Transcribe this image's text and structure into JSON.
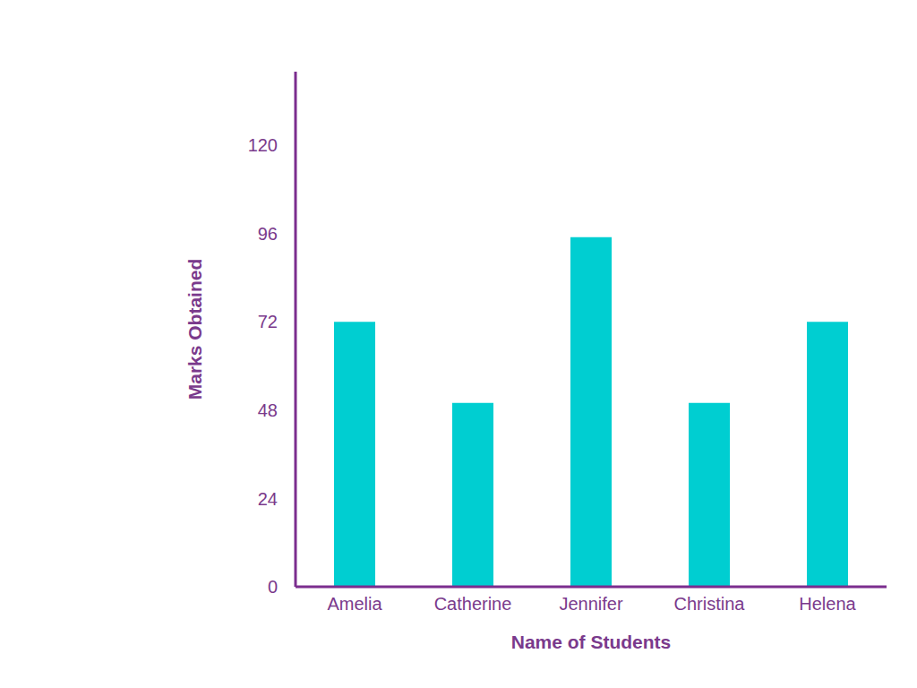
{
  "chart_data": {
    "type": "bar",
    "categories": [
      "Amelia",
      "Catherine",
      "Jennifer",
      "Christina",
      "Helena"
    ],
    "values": [
      72,
      50,
      95,
      50,
      72
    ],
    "color": "#00ced1",
    "x_label": "Name of Students",
    "y_label": "Marks Obtained",
    "ylim": [
      0,
      140
    ],
    "yticks": [
      0,
      24,
      48,
      72,
      96,
      120
    ],
    "grid": false
  }
}
